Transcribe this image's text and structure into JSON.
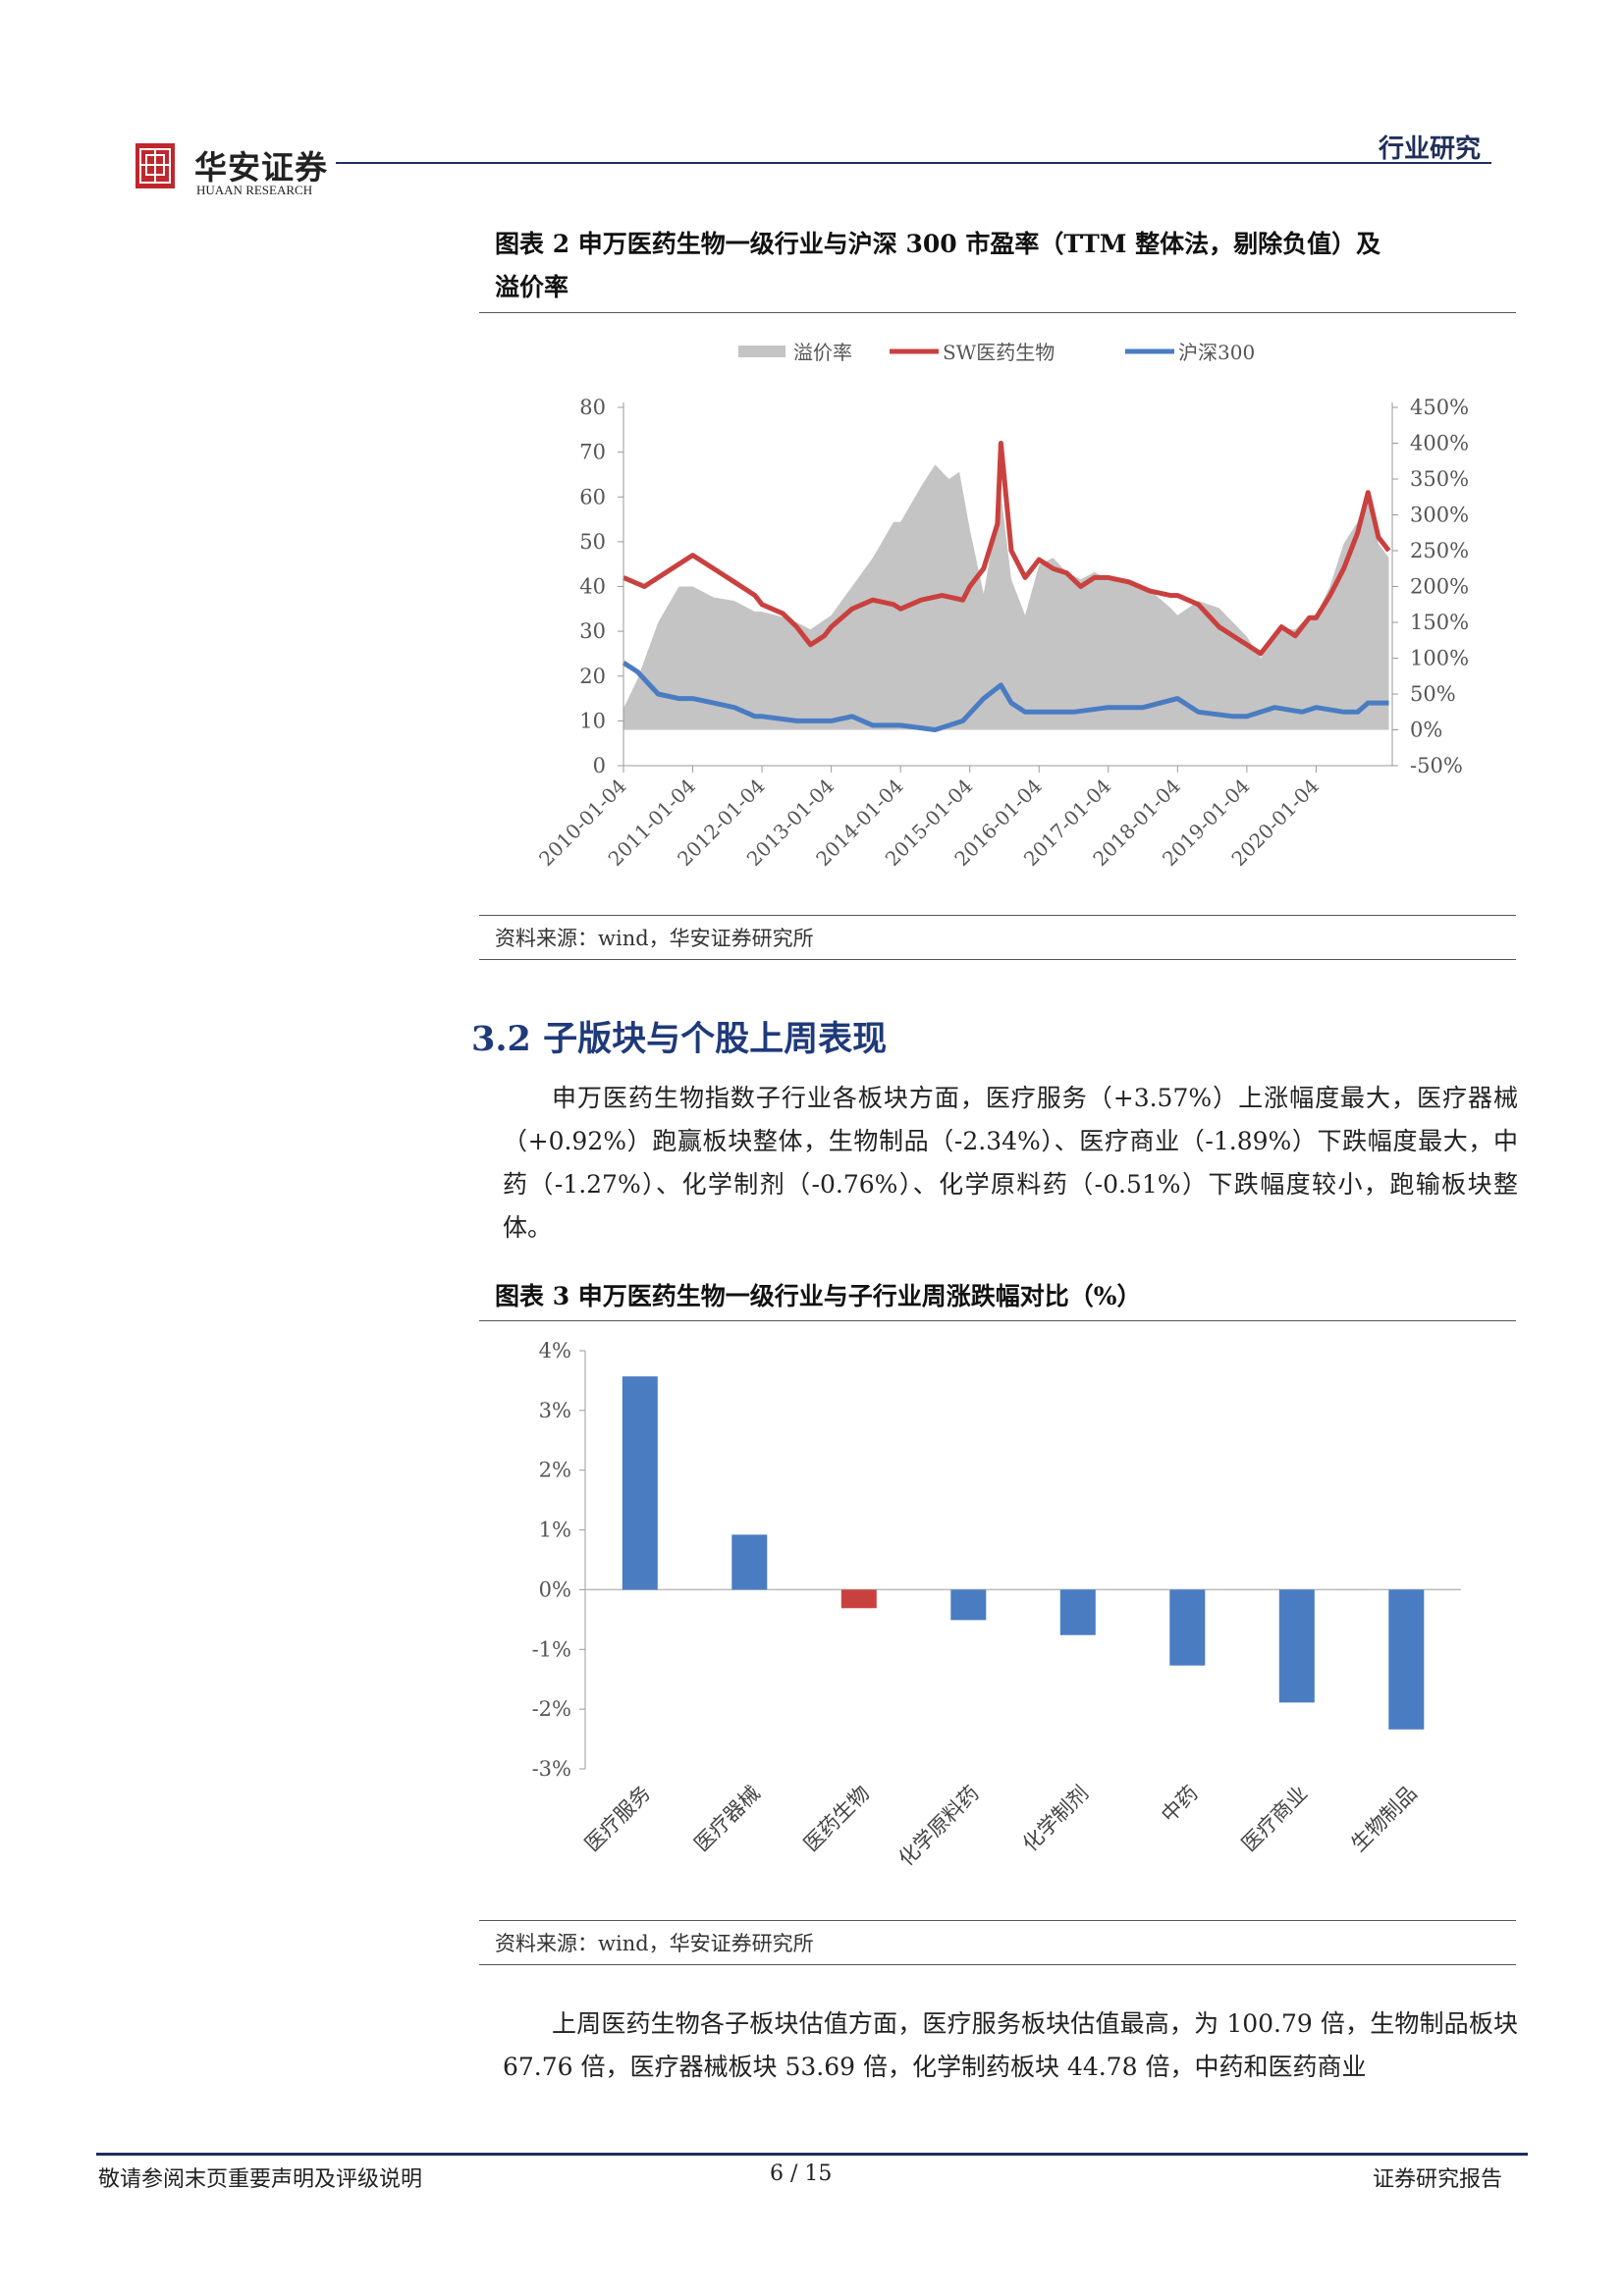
{
  "header": {
    "logo_cn": "华安证券",
    "logo_en": "HUAAN RESEARCH",
    "section_tag": "行业研究"
  },
  "figure2": {
    "caption_line1": "图表 2 申万医药生物一级行业与沪深 300 市盈率（TTM 整体法，剔除负值）及",
    "caption_line2": "溢价率",
    "source": "资料来源：wind，华安证券研究所",
    "chart_data": {
      "type": "area",
      "legend": [
        "溢价率",
        "SW医药生物",
        "沪深300"
      ],
      "legend_position": "top",
      "colors": {
        "premium": "#c4c4c4",
        "sw": "#c9413f",
        "hs300": "#4a7cc2"
      },
      "x_ticks": [
        "2010-01-04",
        "2011-01-04",
        "2012-01-04",
        "2013-01-04",
        "2014-01-04",
        "2015-01-04",
        "2016-01-04",
        "2017-01-04",
        "2018-01-04",
        "2019-01-04",
        "2020-01-04"
      ],
      "left_axis": {
        "ticks": [
          "0",
          "10",
          "20",
          "30",
          "40",
          "50",
          "60",
          "70",
          "80"
        ],
        "range": [
          0,
          80
        ]
      },
      "right_axis": {
        "ticks": [
          "-50%",
          "0%",
          "50%",
          "100%",
          "150%",
          "200%",
          "250%",
          "300%",
          "350%",
          "400%",
          "450%"
        ],
        "range": [
          -50,
          450
        ]
      },
      "x_range": [
        2010.0,
        2021.1
      ],
      "sw": [
        [
          2010.0,
          42
        ],
        [
          2010.3,
          40
        ],
        [
          2010.6,
          43
        ],
        [
          2010.9,
          46
        ],
        [
          2011.0,
          47
        ],
        [
          2011.3,
          44
        ],
        [
          2011.6,
          41
        ],
        [
          2011.9,
          38
        ],
        [
          2012.0,
          36
        ],
        [
          2012.3,
          34
        ],
        [
          2012.5,
          31
        ],
        [
          2012.7,
          27
        ],
        [
          2012.9,
          29
        ],
        [
          2013.0,
          31
        ],
        [
          2013.3,
          35
        ],
        [
          2013.6,
          37
        ],
        [
          2013.9,
          36
        ],
        [
          2014.0,
          35
        ],
        [
          2014.3,
          37
        ],
        [
          2014.6,
          38
        ],
        [
          2014.9,
          37
        ],
        [
          2015.0,
          40
        ],
        [
          2015.2,
          44
        ],
        [
          2015.4,
          54
        ],
        [
          2015.45,
          72
        ],
        [
          2015.6,
          48
        ],
        [
          2015.8,
          42
        ],
        [
          2016.0,
          46
        ],
        [
          2016.2,
          44
        ],
        [
          2016.4,
          43
        ],
        [
          2016.6,
          40
        ],
        [
          2016.8,
          42
        ],
        [
          2017.0,
          42
        ],
        [
          2017.3,
          41
        ],
        [
          2017.6,
          39
        ],
        [
          2017.9,
          38
        ],
        [
          2018.0,
          38
        ],
        [
          2018.3,
          36
        ],
        [
          2018.6,
          31
        ],
        [
          2018.9,
          28
        ],
        [
          2019.0,
          27
        ],
        [
          2019.2,
          25
        ],
        [
          2019.5,
          31
        ],
        [
          2019.7,
          29
        ],
        [
          2019.9,
          33
        ],
        [
          2020.0,
          33
        ],
        [
          2020.2,
          38
        ],
        [
          2020.4,
          44
        ],
        [
          2020.6,
          52
        ],
        [
          2020.75,
          61
        ],
        [
          2020.9,
          51
        ],
        [
          2021.05,
          48
        ]
      ],
      "hs300": [
        [
          2010.0,
          23
        ],
        [
          2010.2,
          21
        ],
        [
          2010.5,
          16
        ],
        [
          2010.8,
          15
        ],
        [
          2011.0,
          15
        ],
        [
          2011.3,
          14
        ],
        [
          2011.6,
          13
        ],
        [
          2011.9,
          11
        ],
        [
          2012.0,
          11
        ],
        [
          2012.5,
          10
        ],
        [
          2013.0,
          10
        ],
        [
          2013.3,
          11
        ],
        [
          2013.6,
          9
        ],
        [
          2014.0,
          9
        ],
        [
          2014.5,
          8
        ],
        [
          2014.9,
          10
        ],
        [
          2015.2,
          15
        ],
        [
          2015.45,
          18
        ],
        [
          2015.6,
          14
        ],
        [
          2015.8,
          12
        ],
        [
          2016.0,
          12
        ],
        [
          2016.5,
          12
        ],
        [
          2017.0,
          13
        ],
        [
          2017.5,
          13
        ],
        [
          2018.0,
          15
        ],
        [
          2018.3,
          12
        ],
        [
          2018.8,
          11
        ],
        [
          2019.0,
          11
        ],
        [
          2019.4,
          13
        ],
        [
          2019.8,
          12
        ],
        [
          2020.0,
          13
        ],
        [
          2020.4,
          12
        ],
        [
          2020.6,
          12
        ],
        [
          2020.75,
          14
        ],
        [
          2021.05,
          14
        ]
      ],
      "premium_pct": [
        [
          2010.0,
          30
        ],
        [
          2010.2,
          70
        ],
        [
          2010.5,
          150
        ],
        [
          2010.8,
          200
        ],
        [
          2011.0,
          200
        ],
        [
          2011.3,
          185
        ],
        [
          2011.6,
          180
        ],
        [
          2011.9,
          165
        ],
        [
          2012.0,
          165
        ],
        [
          2012.4,
          155
        ],
        [
          2012.7,
          140
        ],
        [
          2013.0,
          160
        ],
        [
          2013.3,
          200
        ],
        [
          2013.6,
          240
        ],
        [
          2013.9,
          290
        ],
        [
          2014.0,
          290
        ],
        [
          2014.3,
          340
        ],
        [
          2014.5,
          370
        ],
        [
          2014.7,
          350
        ],
        [
          2014.85,
          360
        ],
        [
          2015.0,
          280
        ],
        [
          2015.2,
          190
        ],
        [
          2015.4,
          300
        ],
        [
          2015.45,
          330
        ],
        [
          2015.6,
          210
        ],
        [
          2015.8,
          160
        ],
        [
          2016.0,
          230
        ],
        [
          2016.2,
          240
        ],
        [
          2016.4,
          220
        ],
        [
          2016.6,
          210
        ],
        [
          2016.8,
          220
        ],
        [
          2017.0,
          210
        ],
        [
          2017.3,
          210
        ],
        [
          2017.6,
          195
        ],
        [
          2017.9,
          170
        ],
        [
          2018.0,
          160
        ],
        [
          2018.3,
          180
        ],
        [
          2018.6,
          170
        ],
        [
          2018.9,
          140
        ],
        [
          2019.0,
          130
        ],
        [
          2019.2,
          100
        ],
        [
          2019.5,
          140
        ],
        [
          2019.7,
          140
        ],
        [
          2019.9,
          160
        ],
        [
          2020.0,
          160
        ],
        [
          2020.2,
          200
        ],
        [
          2020.4,
          260
        ],
        [
          2020.6,
          290
        ],
        [
          2020.75,
          330
        ],
        [
          2020.9,
          260
        ],
        [
          2021.05,
          240
        ]
      ]
    }
  },
  "section": {
    "title": "3.2 子版块与个股上周表现",
    "para1": "申万医药生物指数子行业各板块方面，医疗服务（+3.57%）上涨幅度最大，医疗器械（+0.92%）跑赢板块整体，生物制品（-2.34%）、医疗商业（-1.89%）下跌幅度最大，中药（-1.27%）、化学制剂（-0.76%）、化学原料药（-0.51%）下跌幅度较小，跑输板块整体。"
  },
  "figure3": {
    "caption": "图表 3 申万医药生物一级行业与子行业周涨跌幅对比（%）",
    "source": "资料来源：wind，华安证券研究所",
    "chart_data": {
      "type": "bar",
      "categories": [
        "医疗服务",
        "医疗器械",
        "医药生物",
        "化学原料药",
        "化学制剂",
        "中药",
        "医疗商业",
        "生物制品"
      ],
      "values": [
        3.57,
        0.92,
        -0.31,
        -0.51,
        -0.76,
        -1.27,
        -1.89,
        -2.34
      ],
      "highlight_index": 2,
      "colors": {
        "bar": "#4a7cc2",
        "highlight": "#c9413f"
      },
      "y_ticks": [
        "-3%",
        "-2%",
        "-1%",
        "0%",
        "1%",
        "2%",
        "3%",
        "4%"
      ],
      "ylim": [
        -3,
        4
      ]
    }
  },
  "para2": "上周医药生物各子板块估值方面，医疗服务板块估值最高，为 100.79 倍，生物制品板块 67.76 倍，医疗器械板块 53.69 倍，化学制药板块 44.78 倍，中药和医药商业",
  "footer": {
    "left": "敬请参阅末页重要声明及评级说明",
    "center": "6 / 15",
    "right": "证券研究报告"
  }
}
